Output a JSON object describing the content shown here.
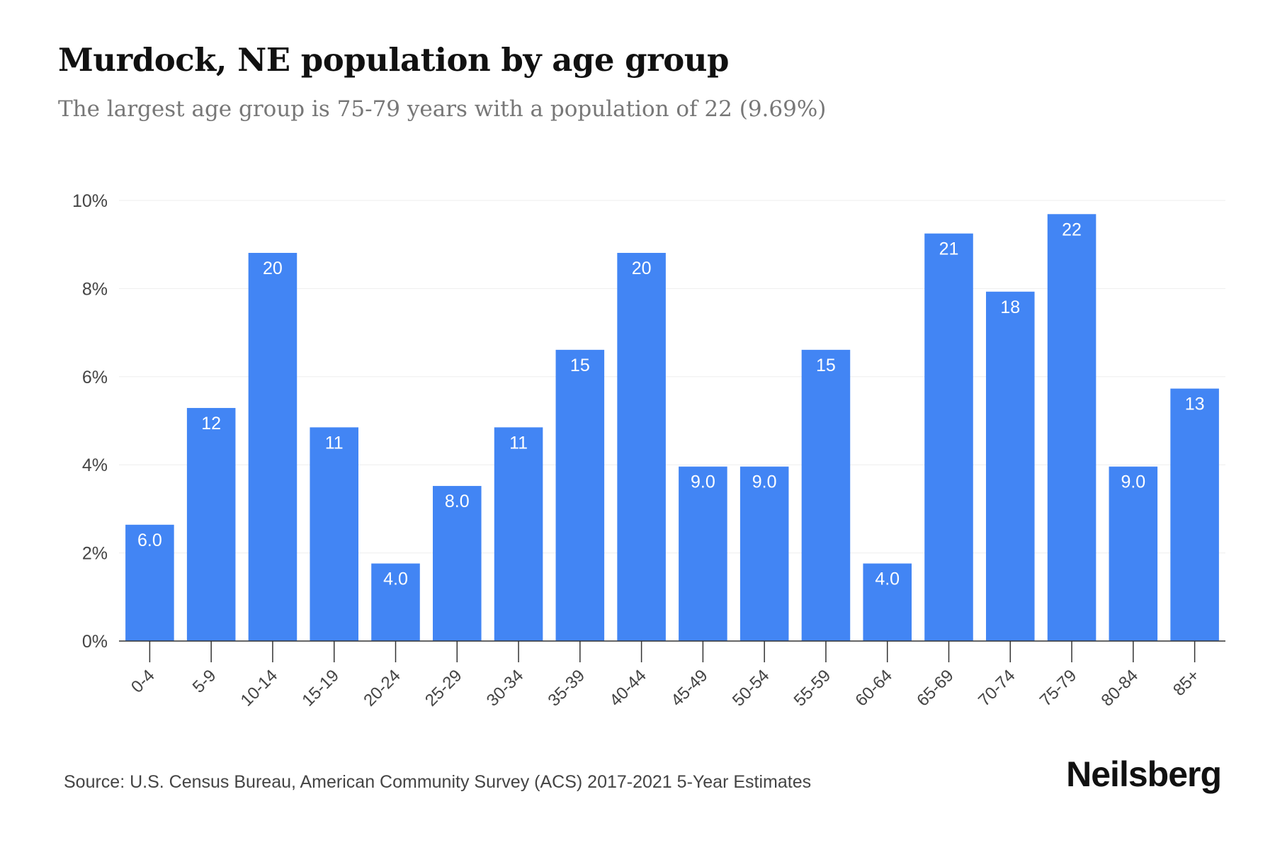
{
  "header": {
    "title": "Murdock, NE population by age group",
    "subtitle": "The largest age group is 75-79 years with a population of 22 (9.69%)"
  },
  "footer": {
    "source": "Source: U.S. Census Bureau, American Community Survey (ACS) 2017-2021 5-Year Estimates",
    "brand": "Neilsberg"
  },
  "colors": {
    "bar": "#4285f4",
    "grid": "#eeeeee",
    "axis": "#333333",
    "tick_label": "#444444",
    "data_label": "#ffffff"
  },
  "chart_data": {
    "type": "bar",
    "title": "Murdock, NE population by age group",
    "subtitle": "The largest age group is 75-79 years with a population of 22 (9.69%)",
    "categories": [
      "0-4",
      "5-9",
      "10-14",
      "15-19",
      "20-24",
      "25-29",
      "30-34",
      "35-39",
      "40-44",
      "45-49",
      "50-54",
      "55-59",
      "60-64",
      "65-69",
      "70-74",
      "75-79",
      "80-84",
      "85+"
    ],
    "values": [
      2.64,
      5.29,
      8.81,
      4.85,
      1.76,
      3.52,
      4.85,
      6.61,
      8.81,
      3.96,
      3.96,
      6.61,
      1.76,
      9.25,
      7.93,
      9.69,
      3.96,
      5.73
    ],
    "data_labels": [
      "6.0",
      "12",
      "20",
      "11",
      "4.0",
      "8.0",
      "11",
      "15",
      "20",
      "9.0",
      "9.0",
      "15",
      "4.0",
      "21",
      "18",
      "22",
      "9.0",
      "13"
    ],
    "yticks": [
      0,
      2,
      4,
      6,
      8,
      10
    ],
    "ytick_labels": [
      "0%",
      "2%",
      "4%",
      "6%",
      "8%",
      "10%"
    ],
    "ylim": [
      0,
      10
    ],
    "xlabel": "",
    "ylabel": "",
    "grid": true,
    "legend": "none"
  }
}
